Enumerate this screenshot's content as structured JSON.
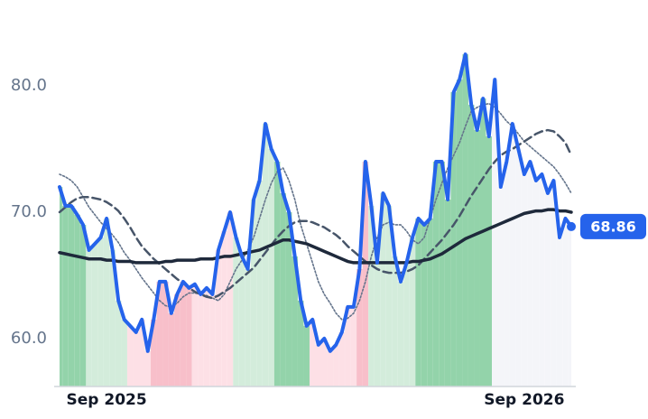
{
  "chart_data": {
    "type": "line",
    "categories": [
      null,
      null,
      null,
      null,
      null,
      null,
      null,
      null,
      "Sep 2025",
      null,
      null,
      null,
      null,
      null,
      null,
      null,
      null,
      null,
      null,
      null,
      null,
      null,
      null,
      null,
      null,
      null,
      null,
      null,
      null,
      null,
      null,
      null,
      null,
      null,
      null,
      null,
      null,
      null,
      null,
      null,
      null,
      null,
      null,
      null,
      null,
      null,
      null,
      null,
      null,
      null,
      null,
      null,
      null,
      null,
      null,
      null,
      null,
      null,
      null,
      null,
      null,
      null,
      null,
      null,
      null,
      null,
      null,
      null,
      null,
      null,
      null,
      null,
      null,
      null,
      null,
      null,
      null,
      null,
      null,
      "Sep 2026",
      null,
      null,
      null,
      null,
      null,
      null,
      null,
      null
    ],
    "series": [
      {
        "color": "#2563eb",
        "style": "solid",
        "values": [
          72.0,
          70.5,
          70.5,
          69.8,
          69.0,
          67.0,
          67.5,
          68.0,
          69.5,
          67.0,
          63.0,
          61.5,
          61.0,
          60.5,
          61.5,
          59.0,
          61.5,
          64.5,
          64.5,
          62.0,
          63.5,
          64.5,
          64.0,
          64.3,
          63.5,
          64.0,
          63.5,
          67.0,
          68.5,
          70.0,
          68.0,
          66.5,
          65.5,
          71.0,
          72.5,
          77.0,
          75.0,
          74.0,
          71.5,
          70.0,
          66.5,
          63.0,
          61.0,
          61.5,
          59.5,
          60.0,
          59.0,
          59.5,
          60.5,
          62.5,
          62.5,
          65.5,
          74.0,
          70.5,
          66.0,
          71.5,
          70.5,
          66.5,
          64.5,
          66.0,
          68.0,
          69.5,
          69.0,
          69.5,
          74.0,
          74.0,
          71.0,
          79.5,
          80.5,
          82.5,
          78.5,
          76.5,
          79.0,
          76.0,
          80.5,
          72.0,
          74.0,
          77.0,
          75.0,
          73.0,
          74.0,
          72.5,
          73.0,
          71.5,
          72.5,
          68.0,
          69.5,
          68.86
        ]
      },
      {
        "color": "#1e293b",
        "style": "solid",
        "values": [
          66.8,
          66.7,
          66.6,
          66.5,
          66.4,
          66.3,
          66.3,
          66.3,
          66.2,
          66.2,
          66.1,
          66.1,
          66.1,
          66.0,
          66.0,
          66.0,
          66.0,
          66.0,
          66.1,
          66.1,
          66.2,
          66.2,
          66.2,
          66.2,
          66.3,
          66.3,
          66.3,
          66.4,
          66.5,
          66.5,
          66.6,
          66.7,
          66.8,
          66.9,
          67.0,
          67.2,
          67.4,
          67.6,
          67.8,
          67.8,
          67.7,
          67.6,
          67.5,
          67.3,
          67.1,
          66.9,
          66.7,
          66.5,
          66.3,
          66.1,
          66.0,
          66.0,
          66.0,
          66.0,
          66.0,
          66.0,
          66.0,
          66.0,
          66.0,
          66.0,
          66.1,
          66.1,
          66.2,
          66.3,
          66.5,
          66.7,
          67.0,
          67.3,
          67.6,
          67.9,
          68.1,
          68.3,
          68.5,
          68.7,
          68.9,
          69.1,
          69.3,
          69.5,
          69.7,
          69.9,
          70.0,
          70.1,
          70.1,
          70.2,
          70.2,
          70.1,
          70.1,
          70.0
        ]
      },
      {
        "color": "#475569",
        "style": "dashed",
        "values": [
          70.0,
          70.4,
          70.8,
          71.1,
          71.2,
          71.2,
          71.1,
          71.0,
          70.8,
          70.5,
          70.1,
          69.5,
          68.8,
          68.0,
          67.3,
          66.8,
          66.3,
          65.9,
          65.5,
          65.1,
          64.7,
          64.4,
          64.0,
          63.7,
          63.5,
          63.3,
          63.2,
          63.4,
          63.7,
          64.0,
          64.4,
          64.8,
          65.2,
          65.6,
          66.2,
          66.8,
          67.4,
          68.0,
          68.5,
          68.9,
          69.2,
          69.3,
          69.3,
          69.2,
          69.0,
          68.8,
          68.5,
          68.2,
          67.8,
          67.3,
          66.9,
          66.5,
          66.1,
          65.8,
          65.5,
          65.3,
          65.2,
          65.2,
          65.2,
          65.3,
          65.5,
          65.8,
          66.3,
          66.8,
          67.3,
          67.8,
          68.4,
          69.0,
          69.7,
          70.5,
          71.3,
          72.0,
          72.7,
          73.4,
          74.0,
          74.5,
          74.8,
          75.0,
          75.3,
          75.6,
          75.9,
          76.2,
          76.4,
          76.5,
          76.4,
          76.0,
          75.5,
          74.5
        ]
      },
      {
        "color": "#64748b",
        "style": "dotted",
        "values": [
          73.0,
          72.8,
          72.5,
          72.0,
          71.2,
          70.4,
          69.8,
          69.2,
          68.7,
          68.2,
          67.6,
          66.8,
          66.2,
          65.5,
          64.8,
          64.2,
          63.6,
          63.0,
          62.6,
          62.5,
          62.8,
          63.3,
          63.6,
          63.6,
          63.5,
          63.4,
          63.2,
          63.0,
          63.5,
          64.5,
          65.5,
          66.2,
          67.0,
          68.0,
          69.5,
          71.0,
          72.3,
          73.2,
          73.5,
          72.5,
          71.0,
          69.0,
          67.5,
          66.0,
          64.5,
          63.5,
          62.8,
          62.0,
          61.5,
          61.6,
          62.0,
          63.0,
          64.5,
          66.5,
          68.0,
          69.0,
          69.2,
          69.0,
          69.0,
          68.5,
          67.8,
          67.5,
          68.0,
          69.5,
          71.0,
          72.3,
          73.5,
          74.5,
          75.5,
          76.8,
          78.0,
          78.3,
          78.5,
          78.6,
          78.3,
          77.8,
          77.2,
          76.8,
          76.2,
          75.6,
          75.2,
          74.8,
          74.4,
          74.0,
          73.6,
          73.0,
          72.3,
          71.5
        ]
      }
    ],
    "shading": [
      {
        "from": 0,
        "to": 5,
        "color": "#93d3aa"
      },
      {
        "from": 5,
        "to": 12,
        "color": "#d3ecdb"
      },
      {
        "from": 12,
        "to": 16,
        "color": "#fde0e6"
      },
      {
        "from": 16,
        "to": 23,
        "color": "#f8bfca"
      },
      {
        "from": 23,
        "to": 30,
        "color": "#fde0e6"
      },
      {
        "from": 30,
        "to": 37,
        "color": "#d3ecdb"
      },
      {
        "from": 37,
        "to": 43,
        "color": "#93d3aa"
      },
      {
        "from": 43,
        "to": 51,
        "color": "#fde0e6"
      },
      {
        "from": 51,
        "to": 53,
        "color": "#f8bfca"
      },
      {
        "from": 53,
        "to": 61,
        "color": "#d3ecdb"
      },
      {
        "from": 61,
        "to": 74,
        "color": "#93d3aa"
      },
      {
        "from": 74,
        "to": 88,
        "color": "#f4f5f9"
      }
    ],
    "ylim": [
      56.2,
      86.8
    ],
    "yticks": [
      {
        "value": 60,
        "label": "60.0"
      },
      {
        "value": 70,
        "label": "70.0"
      },
      {
        "value": 80,
        "label": "80.0"
      }
    ],
    "grid": false
  }
}
